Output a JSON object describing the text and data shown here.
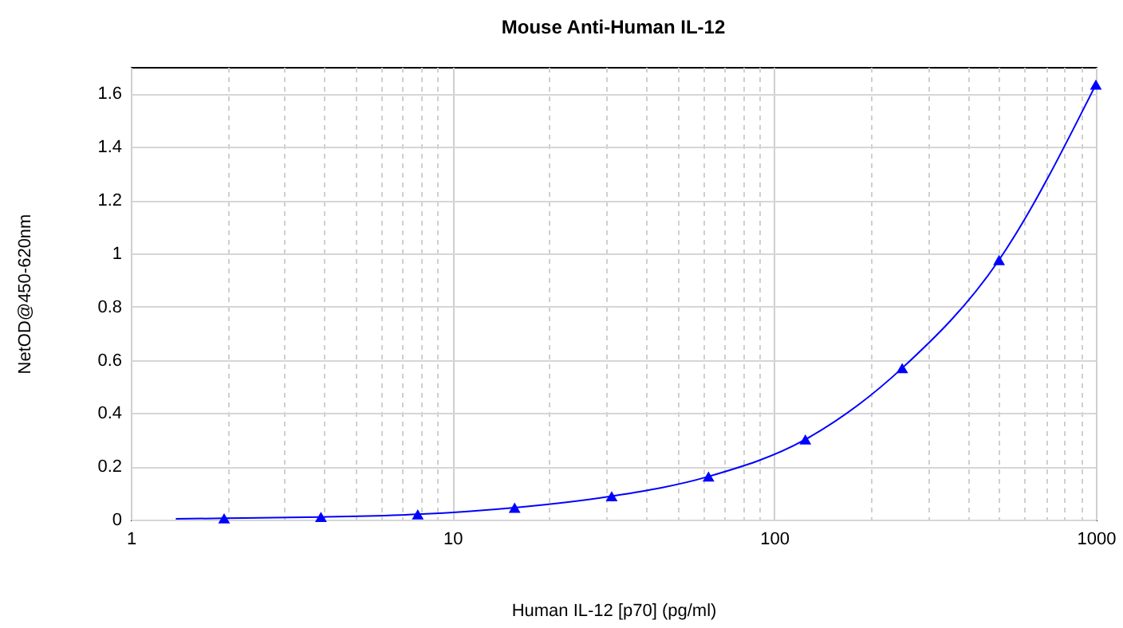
{
  "chart_data": {
    "type": "scatter",
    "title": "Mouse Anti-Human IL-12",
    "xlabel": "Human IL-12 [p70] (pg/ml)",
    "ylabel": "NetOD@450-620nm",
    "series": [
      {
        "type": "line",
        "color": "#0000ff",
        "marker": "none",
        "line_style": "solid",
        "x": [
          1.38,
          1.95,
          3.9,
          7.8,
          15.6,
          31.25,
          62.5,
          125,
          250,
          500,
          1000
        ],
        "values": [
          0.003,
          0.005,
          0.01,
          0.02,
          0.045,
          0.088,
          0.162,
          0.301,
          0.569,
          0.975,
          1.634
        ]
      },
      {
        "color": "#0000ff",
        "marker": "triangle",
        "x": [
          1.95,
          3.9,
          7.8,
          15.6,
          31.25,
          62.5,
          125,
          250,
          500,
          1000
        ],
        "values": [
          0.005,
          0.01,
          0.02,
          0.045,
          0.088,
          0.162,
          0.301,
          0.569,
          0.975,
          1.634
        ]
      }
    ],
    "log": "x",
    "xlim": [
      1,
      1000
    ],
    "ylim": [
      0,
      1.7
    ],
    "xticks": [
      1,
      {
        "value": 2,
        "label": null
      },
      {
        "value": 3,
        "label": null
      },
      {
        "value": 4,
        "label": null
      },
      {
        "value": 5,
        "label": null
      },
      {
        "value": 6,
        "label": null
      },
      {
        "value": 7,
        "label": null
      },
      {
        "value": 8,
        "label": null
      },
      {
        "value": 9,
        "label": null
      },
      10,
      {
        "value": 20,
        "label": null
      },
      {
        "value": 30,
        "label": null
      },
      {
        "value": 40,
        "label": null
      },
      {
        "value": 50,
        "label": null
      },
      {
        "value": 60,
        "label": null
      },
      {
        "value": 70,
        "label": null
      },
      {
        "value": 80,
        "label": null
      },
      {
        "value": 90,
        "label": null
      },
      100,
      {
        "value": 200,
        "label": null
      },
      {
        "value": 300,
        "label": null
      },
      {
        "value": 400,
        "label": null
      },
      {
        "value": 500,
        "label": null
      },
      {
        "value": 600,
        "label": null
      },
      {
        "value": 700,
        "label": null
      },
      {
        "value": 800,
        "label": null
      },
      {
        "value": 900,
        "label": null
      },
      1000
    ],
    "yticks": [
      0,
      0.2,
      0.4,
      0.6,
      0.8,
      1,
      1.2,
      1.4,
      1.6
    ],
    "grid": true
  }
}
